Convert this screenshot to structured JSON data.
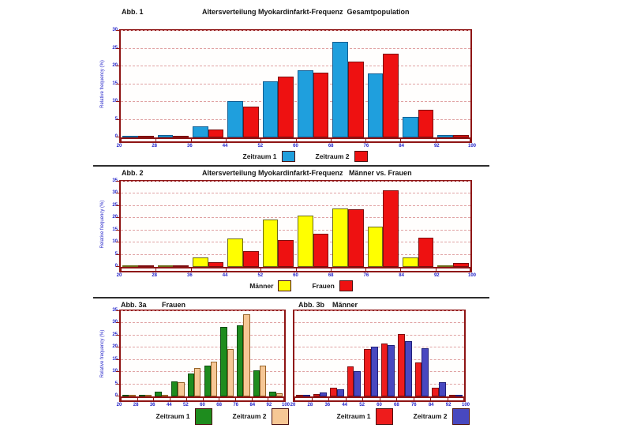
{
  "page": {
    "background": "#ffffff"
  },
  "colors": {
    "frame": "#8e1414",
    "gridline": "#e0a2a2",
    "axis_text": "#2424c8",
    "divider": "#2e2e2e"
  },
  "chart_data": [
    {
      "type": "bar",
      "figure_label": "Abb. 1",
      "title": "Altersverteilung Myokardinfarkt-Frequenz  Gesamtpopulation",
      "ylabel": "Relative frequency (%)",
      "xlabel": "",
      "bin_edges": [
        20,
        28,
        36,
        44,
        52,
        60,
        68,
        76,
        84,
        92,
        100
      ],
      "categories": [
        "20-28",
        "28-36",
        "36-44",
        "44-52",
        "52-60",
        "60-68",
        "68-76",
        "76-84",
        "84-92",
        "92-100"
      ],
      "ylim": [
        0,
        30
      ],
      "yticks": [
        0,
        5,
        10,
        15,
        20,
        25,
        30
      ],
      "grid": true,
      "show_y_axis_labels": true,
      "legend_position": "bottom",
      "series": [
        {
          "name": "Zeitraum 1",
          "color": "#1f9fdd",
          "border": "#135e92",
          "values": [
            0.2,
            0.6,
            3.2,
            10.3,
            15.7,
            18.8,
            26.9,
            18.1,
            5.7,
            0.6
          ]
        },
        {
          "name": "Zeitraum 2",
          "color": "#ee1111",
          "border": "#7d0f0f",
          "values": [
            0.2,
            0.5,
            2.3,
            8.6,
            17.2,
            18.3,
            21.3,
            23.5,
            7.8,
            0.6
          ]
        }
      ]
    },
    {
      "type": "bar",
      "figure_label": "Abb. 2",
      "title": "Altersverteilung Myokardinfarkt-Frequenz   Männer vs. Frauen",
      "ylabel": "Relative frequency (%)",
      "xlabel": "",
      "bin_edges": [
        20,
        28,
        36,
        44,
        52,
        60,
        68,
        76,
        84,
        92,
        100
      ],
      "categories": [
        "20-28",
        "28-36",
        "36-44",
        "44-52",
        "52-60",
        "60-68",
        "68-76",
        "76-84",
        "84-92",
        "92-100"
      ],
      "ylim": [
        0,
        35
      ],
      "yticks": [
        0,
        5,
        10,
        15,
        20,
        25,
        30,
        35
      ],
      "grid": true,
      "show_y_axis_labels": true,
      "legend_position": "bottom",
      "series": [
        {
          "name": "Männer",
          "color": "#ffff00",
          "border": "#6b6b18",
          "values": [
            0.2,
            0.8,
            3.8,
            11.6,
            19.3,
            21.0,
            24.0,
            16.5,
            4.0,
            0.8
          ]
        },
        {
          "name": "Frauen",
          "color": "#ee1111",
          "border": "#7d0f0f",
          "values": [
            0.1,
            0.3,
            1.8,
            6.5,
            11.0,
            13.6,
            23.7,
            31.5,
            12.0,
            1.5
          ]
        }
      ]
    },
    {
      "type": "bar",
      "figure_label": "Abb. 3a",
      "title": "Frauen",
      "ylabel": "Relative frequency (%)",
      "xlabel": "",
      "bin_edges": [
        20,
        28,
        36,
        44,
        52,
        60,
        68,
        76,
        84,
        92,
        100
      ],
      "categories": [
        "20-28",
        "28-36",
        "36-44",
        "44-52",
        "52-60",
        "60-68",
        "68-76",
        "76-84",
        "84-92",
        "92-100"
      ],
      "ylim": [
        0,
        35
      ],
      "yticks": [
        0,
        5,
        10,
        15,
        20,
        25,
        30,
        35
      ],
      "grid": true,
      "show_y_axis_labels": true,
      "legend_position": "bottom",
      "series": [
        {
          "name": "Zeitraum 1",
          "color": "#1e8c1e",
          "border": "#0c4a10",
          "values": [
            0.1,
            0.3,
            1.8,
            6.3,
            9.4,
            12.8,
            28.5,
            29.2,
            10.7,
            1.8
          ]
        },
        {
          "name": "Zeitraum 2",
          "color": "#f6c795",
          "border": "#96642a",
          "values": [
            0.1,
            0.2,
            0.7,
            5.9,
            11.7,
            14.2,
            19.6,
            33.8,
            12.8,
            1.2
          ]
        }
      ]
    },
    {
      "type": "bar",
      "figure_label": "Abb. 3b",
      "title": "Männer",
      "ylabel": "",
      "xlabel": "",
      "bin_edges": [
        20,
        28,
        36,
        44,
        52,
        60,
        68,
        76,
        84,
        92,
        100
      ],
      "categories": [
        "20-28",
        "28-36",
        "36-44",
        "44-52",
        "52-60",
        "60-68",
        "68-76",
        "76-84",
        "84-92",
        "92-100"
      ],
      "ylim": [
        0,
        35
      ],
      "yticks": [
        0,
        5,
        10,
        15,
        20,
        25,
        30,
        35
      ],
      "grid": true,
      "show_y_axis_labels": false,
      "legend_position": "bottom",
      "series": [
        {
          "name": "Zeitraum 1",
          "color": "#ee1c1c",
          "border": "#7d0f0f",
          "values": [
            0.3,
            1.0,
            3.7,
            12.3,
            19.5,
            21.8,
            25.5,
            14.0,
            3.6,
            0.4
          ]
        },
        {
          "name": "Zeitraum 2",
          "color": "#4848c0",
          "border": "#20207a",
          "values": [
            0.3,
            1.5,
            2.9,
            10.4,
            20.3,
            21.0,
            22.8,
            19.8,
            5.8,
            0.5
          ]
        }
      ]
    }
  ]
}
